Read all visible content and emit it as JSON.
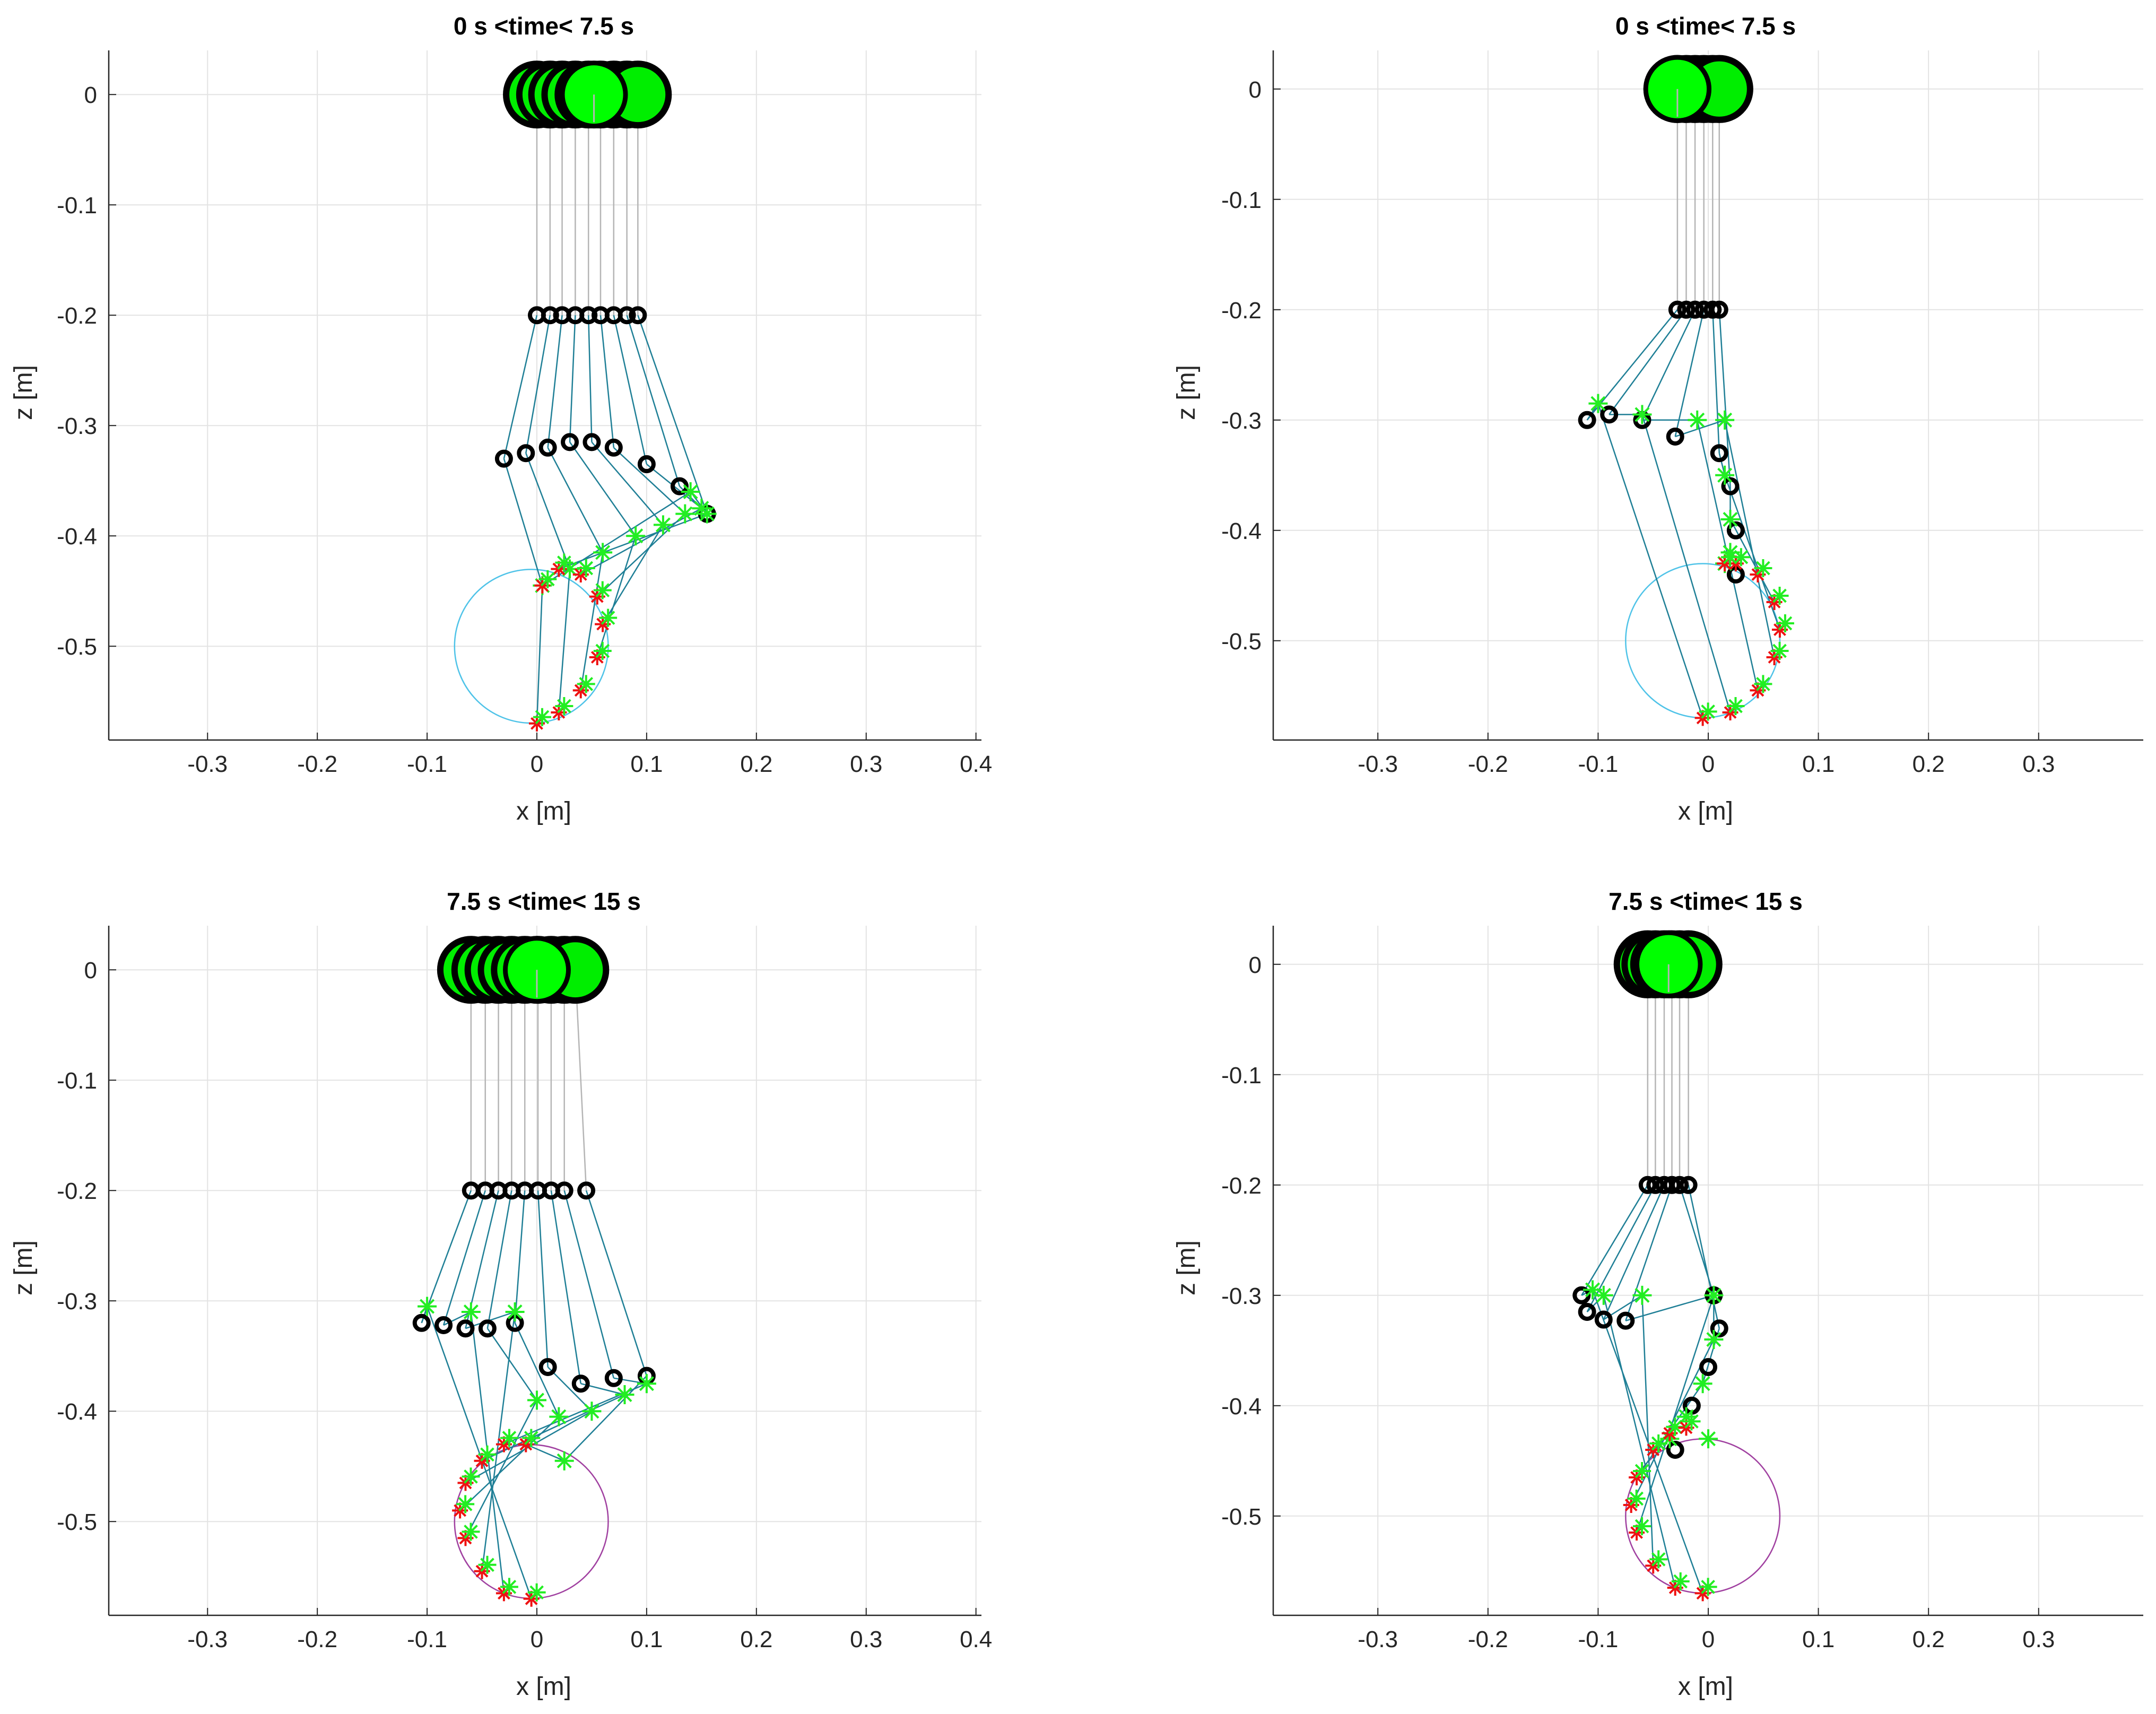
{
  "chart_data": [
    {
      "type": "scatter",
      "title": "0 s <time< 7.5 s",
      "xlabel": "x [m]",
      "ylabel": "z [m]",
      "xlim": [
        -0.39,
        0.405
      ],
      "ylim": [
        -0.585,
        0.04
      ],
      "xticks": [
        -0.3,
        -0.2,
        -0.1,
        0,
        0.1,
        0.2,
        0.3,
        0.4
      ],
      "yticks": [
        0,
        -0.1,
        -0.2,
        -0.3,
        -0.4,
        -0.5
      ],
      "grid": true,
      "circle": {
        "center": [
          -0.005,
          -0.5
        ],
        "radius": 0.07,
        "color": "#4fc3e8"
      },
      "frames": {
        "hip": [
          [
            0.0,
            0.0
          ],
          [
            0.012,
            0.0
          ],
          [
            0.023,
            0.0
          ],
          [
            0.035,
            0.0
          ],
          [
            0.047,
            0.0
          ],
          [
            0.058,
            0.0
          ],
          [
            0.07,
            0.0
          ],
          [
            0.082,
            0.0
          ],
          [
            0.092,
            0.0
          ],
          [
            0.052,
            0.0
          ]
        ],
        "knee": [
          [
            0.0,
            -0.2
          ],
          [
            0.012,
            -0.2
          ],
          [
            0.023,
            -0.2
          ],
          [
            0.035,
            -0.2
          ],
          [
            0.047,
            -0.2
          ],
          [
            0.058,
            -0.2
          ],
          [
            0.07,
            -0.2
          ],
          [
            0.082,
            -0.2
          ],
          [
            0.092,
            -0.2
          ]
        ],
        "ankle": [
          [
            -0.03,
            -0.33
          ],
          [
            -0.01,
            -0.325
          ],
          [
            0.01,
            -0.32
          ],
          [
            0.03,
            -0.315
          ],
          [
            0.05,
            -0.315
          ],
          [
            0.07,
            -0.32
          ],
          [
            0.1,
            -0.335
          ],
          [
            0.13,
            -0.355
          ],
          [
            0.155,
            -0.38
          ]
        ],
        "toe": [
          [
            0.005,
            -0.445
          ],
          [
            0.03,
            -0.43
          ],
          [
            0.06,
            -0.415
          ],
          [
            0.09,
            -0.4
          ],
          [
            0.115,
            -0.39
          ],
          [
            0.135,
            -0.38
          ],
          [
            0.15,
            -0.375
          ],
          [
            0.155,
            -0.38
          ],
          [
            0.14,
            -0.36
          ]
        ],
        "heel": [
          [
            0.0,
            -0.57
          ],
          [
            0.02,
            -0.56
          ],
          [
            0.04,
            -0.54
          ],
          [
            0.055,
            -0.51
          ],
          [
            0.06,
            -0.48
          ],
          [
            0.055,
            -0.455
          ],
          [
            0.04,
            -0.435
          ],
          [
            0.02,
            -0.43
          ],
          [
            0.005,
            -0.445
          ]
        ]
      },
      "hip_current": [
        0.052,
        0.0
      ]
    },
    {
      "type": "scatter",
      "title": "0 s <time< 7.5 s",
      "xlabel": "x [m]",
      "ylabel": "z [m]",
      "xlim": [
        -0.395,
        0.395
      ],
      "ylim": [
        -0.59,
        0.035
      ],
      "xticks": [
        -0.3,
        -0.2,
        -0.1,
        0,
        0.1,
        0.2,
        0.3
      ],
      "yticks": [
        0,
        -0.1,
        -0.2,
        -0.3,
        -0.4,
        -0.5
      ],
      "grid": true,
      "circle": {
        "center": [
          -0.005,
          -0.5
        ],
        "radius": 0.07,
        "color": "#4fc3e8"
      },
      "frames": {
        "hip": [
          [
            -0.028,
            0.0
          ],
          [
            -0.02,
            0.0
          ],
          [
            -0.012,
            0.0
          ],
          [
            -0.004,
            0.0
          ],
          [
            0.004,
            0.0
          ],
          [
            0.01,
            0.0
          ],
          [
            -0.028,
            0.0
          ]
        ],
        "knee": [
          [
            -0.028,
            -0.2
          ],
          [
            -0.02,
            -0.2
          ],
          [
            -0.012,
            -0.2
          ],
          [
            -0.004,
            -0.2
          ],
          [
            0.004,
            -0.2
          ],
          [
            0.01,
            -0.2
          ]
        ],
        "ankle": [
          [
            -0.11,
            -0.3
          ],
          [
            -0.09,
            -0.295
          ],
          [
            -0.06,
            -0.3
          ],
          [
            -0.03,
            -0.315
          ],
          [
            0.01,
            -0.33
          ],
          [
            0.02,
            -0.36
          ],
          [
            0.025,
            -0.4
          ],
          [
            0.025,
            -0.44
          ]
        ],
        "toe": [
          [
            -0.1,
            -0.285
          ],
          [
            -0.06,
            -0.295
          ],
          [
            -0.01,
            -0.3
          ],
          [
            0.015,
            -0.3
          ],
          [
            0.015,
            -0.35
          ],
          [
            0.02,
            -0.39
          ],
          [
            0.02,
            -0.42
          ],
          [
            0.015,
            -0.43
          ]
        ],
        "heel": [
          [
            -0.005,
            -0.57
          ],
          [
            0.02,
            -0.565
          ],
          [
            0.045,
            -0.545
          ],
          [
            0.06,
            -0.515
          ],
          [
            0.065,
            -0.49
          ],
          [
            0.06,
            -0.465
          ],
          [
            0.045,
            -0.44
          ],
          [
            0.025,
            -0.43
          ],
          [
            0.015,
            -0.43
          ]
        ]
      },
      "hip_current": [
        -0.028,
        0.0
      ]
    },
    {
      "type": "scatter",
      "title": "7.5 s <time< 15 s",
      "xlabel": "x [m]",
      "ylabel": "z [m]",
      "xlim": [
        -0.39,
        0.405
      ],
      "ylim": [
        -0.585,
        0.04
      ],
      "xticks": [
        -0.3,
        -0.2,
        -0.1,
        0,
        0.1,
        0.2,
        0.3,
        0.4
      ],
      "yticks": [
        0,
        -0.1,
        -0.2,
        -0.3,
        -0.4,
        -0.5
      ],
      "grid": true,
      "circle": {
        "center": [
          -0.005,
          -0.5
        ],
        "radius": 0.07,
        "color": "#a040a0"
      },
      "frames": {
        "hip": [
          [
            -0.06,
            0.0
          ],
          [
            -0.047,
            0.0
          ],
          [
            -0.035,
            0.0
          ],
          [
            -0.023,
            0.0
          ],
          [
            -0.011,
            0.0
          ],
          [
            0.001,
            0.0
          ],
          [
            0.013,
            0.0
          ],
          [
            0.025,
            0.0
          ],
          [
            0.035,
            0.0
          ],
          [
            0.0,
            0.0
          ]
        ],
        "knee": [
          [
            -0.06,
            -0.2
          ],
          [
            -0.047,
            -0.2
          ],
          [
            -0.035,
            -0.2
          ],
          [
            -0.023,
            -0.2
          ],
          [
            -0.011,
            -0.2
          ],
          [
            0.001,
            -0.2
          ],
          [
            0.013,
            -0.2
          ],
          [
            0.025,
            -0.2
          ],
          [
            0.045,
            -0.2
          ]
        ],
        "ankle": [
          [
            -0.105,
            -0.32
          ],
          [
            -0.085,
            -0.322
          ],
          [
            -0.065,
            -0.325
          ],
          [
            -0.045,
            -0.325
          ],
          [
            -0.02,
            -0.32
          ],
          [
            0.01,
            -0.36
          ],
          [
            0.04,
            -0.375
          ],
          [
            0.07,
            -0.37
          ],
          [
            0.1,
            -0.368
          ]
        ],
        "toe": [
          [
            -0.1,
            -0.305
          ],
          [
            -0.06,
            -0.31
          ],
          [
            -0.02,
            -0.31
          ],
          [
            0.0,
            -0.39
          ],
          [
            0.02,
            -0.405
          ],
          [
            0.05,
            -0.4
          ],
          [
            0.08,
            -0.385
          ],
          [
            0.1,
            -0.375
          ],
          [
            0.025,
            -0.445
          ]
        ],
        "heel": [
          [
            -0.005,
            -0.57
          ],
          [
            -0.03,
            -0.565
          ],
          [
            -0.05,
            -0.545
          ],
          [
            -0.065,
            -0.515
          ],
          [
            -0.07,
            -0.49
          ],
          [
            -0.065,
            -0.465
          ],
          [
            -0.05,
            -0.445
          ],
          [
            -0.03,
            -0.43
          ],
          [
            -0.01,
            -0.43
          ]
        ]
      },
      "hip_current": [
        0.0,
        0.0
      ]
    },
    {
      "type": "scatter",
      "title": "7.5 s <time< 15 s",
      "xlabel": "x [m]",
      "ylabel": "z [m]",
      "xlim": [
        -0.395,
        0.395
      ],
      "ylim": [
        -0.59,
        0.035
      ],
      "xticks": [
        -0.3,
        -0.2,
        -0.1,
        0,
        0.1,
        0.2,
        0.3
      ],
      "yticks": [
        0,
        -0.1,
        -0.2,
        -0.3,
        -0.4,
        -0.5
      ],
      "grid": true,
      "circle": {
        "center": [
          -0.005,
          -0.5
        ],
        "radius": 0.07,
        "color": "#a040a0"
      },
      "frames": {
        "hip": [
          [
            -0.055,
            0.0
          ],
          [
            -0.048,
            0.0
          ],
          [
            -0.04,
            0.0
          ],
          [
            -0.033,
            0.0
          ],
          [
            -0.026,
            0.0
          ],
          [
            -0.018,
            0.0
          ],
          [
            -0.036,
            0.0
          ]
        ],
        "knee": [
          [
            -0.055,
            -0.2
          ],
          [
            -0.048,
            -0.2
          ],
          [
            -0.04,
            -0.2
          ],
          [
            -0.033,
            -0.2
          ],
          [
            -0.026,
            -0.2
          ],
          [
            -0.018,
            -0.2
          ]
        ],
        "ankle": [
          [
            -0.115,
            -0.3
          ],
          [
            -0.11,
            -0.315
          ],
          [
            -0.095,
            -0.322
          ],
          [
            -0.075,
            -0.323
          ],
          [
            0.005,
            -0.3
          ],
          [
            0.01,
            -0.33
          ],
          [
            0.0,
            -0.365
          ],
          [
            -0.015,
            -0.4
          ],
          [
            -0.03,
            -0.44
          ]
        ],
        "toe": [
          [
            -0.105,
            -0.295
          ],
          [
            -0.095,
            -0.3
          ],
          [
            -0.06,
            -0.3
          ],
          [
            0.005,
            -0.3
          ],
          [
            0.005,
            -0.34
          ],
          [
            -0.005,
            -0.38
          ],
          [
            -0.02,
            -0.41
          ],
          [
            -0.035,
            -0.43
          ],
          [
            0.0,
            -0.43
          ]
        ],
        "heel": [
          [
            -0.005,
            -0.57
          ],
          [
            -0.03,
            -0.565
          ],
          [
            -0.05,
            -0.545
          ],
          [
            -0.065,
            -0.515
          ],
          [
            -0.07,
            -0.49
          ],
          [
            -0.065,
            -0.465
          ],
          [
            -0.05,
            -0.44
          ],
          [
            -0.035,
            -0.425
          ],
          [
            -0.02,
            -0.42
          ]
        ]
      },
      "hip_current": [
        -0.036,
        0.0
      ]
    }
  ]
}
